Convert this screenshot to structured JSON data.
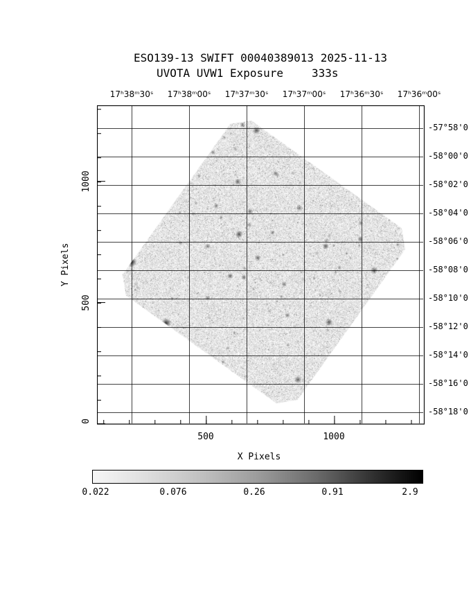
{
  "chart_data": {
    "type": "heatmap",
    "title": "ESO139-13 SWIFT 00040389013 2025-11-13",
    "subtitle_left": "UVOTA UVW1 Exposure",
    "subtitle_right": "333s",
    "target": "ESO139-13",
    "mission": "SWIFT",
    "obsid": "00040389013",
    "date": "2025-11-13",
    "instrument": "UVOTA",
    "filter": "UVW1",
    "map_type": "Exposure",
    "exposure_time_s": 333,
    "xlabel": "X Pixels",
    "ylabel": "Y Pixels",
    "xlim": [
      75,
      1350
    ],
    "ylim": [
      0,
      1315
    ],
    "x_ticks": [
      500,
      1000
    ],
    "y_ticks": [
      0,
      500,
      1000
    ],
    "x_tick_labels": [
      "500",
      "1000"
    ],
    "y_tick_labels": [
      "0",
      "500",
      "1000"
    ],
    "ra_tick_labels": [
      "17ʰ38ᵐ30ˢ",
      "17ʰ38ᵐ00ˢ",
      "17ʰ37ᵐ30ˢ",
      "17ʰ37ᵐ00ˢ",
      "17ʰ36ᵐ30ˢ",
      "17ʰ36ᵐ00ˢ"
    ],
    "dec_tick_labels": [
      "-57°58'0",
      "-58°00'0",
      "-58°02'0",
      "-58°04'0",
      "-58°06'0",
      "-58°08'0",
      "-58°10'0",
      "-58°12'0",
      "-58°14'0",
      "-58°16'0",
      "-58°18'0"
    ],
    "grid": true,
    "colorbar": {
      "orientation": "horizontal",
      "scale": "log",
      "labels": [
        "0.022",
        "0.076",
        "0.26",
        "0.91",
        "2.9"
      ],
      "values": [
        0.022,
        0.076,
        0.26,
        0.91,
        2.9
      ],
      "gradient_colors": [
        "#f6f6f6",
        "#e0e0e0",
        "#c2c2c2",
        "#9c9c9c",
        "#6a6a6a",
        "#303030",
        "#000000"
      ],
      "gradient_pos": [
        0,
        15,
        32,
        50,
        68,
        85,
        100
      ]
    },
    "footprint": {
      "shape": "rotated-square",
      "center_x": 726,
      "center_y": 669,
      "half_diagonal": 610,
      "corner_angle_deg": -9.4,
      "corner_cut_frac": 0.07
    },
    "sources": [
      {
        "x": 210,
        "y": 669,
        "r": 3.5,
        "a": 0.85
      },
      {
        "x": 345,
        "y": 417,
        "r": 3.2,
        "a": 0.8
      },
      {
        "x": 629,
        "y": 783,
        "r": 2.5,
        "a": 0.7
      },
      {
        "x": 594,
        "y": 611,
        "r": 2.0,
        "a": 0.6
      },
      {
        "x": 648,
        "y": 606,
        "r": 1.8,
        "a": 0.55
      },
      {
        "x": 507,
        "y": 520,
        "r": 1.8,
        "a": 0.5
      },
      {
        "x": 702,
        "y": 686,
        "r": 2.0,
        "a": 0.6
      },
      {
        "x": 805,
        "y": 577,
        "r": 1.8,
        "a": 0.5
      },
      {
        "x": 672,
        "y": 877,
        "r": 2.0,
        "a": 0.55
      },
      {
        "x": 624,
        "y": 1000,
        "r": 2.2,
        "a": 0.6
      },
      {
        "x": 697,
        "y": 1211,
        "r": 2.5,
        "a": 0.65
      },
      {
        "x": 772,
        "y": 1034,
        "r": 1.8,
        "a": 0.5
      },
      {
        "x": 864,
        "y": 891,
        "r": 2.0,
        "a": 0.55
      },
      {
        "x": 967,
        "y": 734,
        "r": 2.2,
        "a": 0.6
      },
      {
        "x": 980,
        "y": 420,
        "r": 2.5,
        "a": 0.65
      },
      {
        "x": 1102,
        "y": 763,
        "r": 2.0,
        "a": 0.55
      },
      {
        "x": 1156,
        "y": 634,
        "r": 2.5,
        "a": 0.6
      },
      {
        "x": 859,
        "y": 183,
        "r": 2.5,
        "a": 0.6
      },
      {
        "x": 818,
        "y": 449,
        "r": 1.8,
        "a": 0.5
      },
      {
        "x": 507,
        "y": 734,
        "r": 1.8,
        "a": 0.5
      },
      {
        "x": 643,
        "y": 1234,
        "r": 1.8,
        "a": 0.5
      },
      {
        "x": 1130,
        "y": 920,
        "r": 1.8,
        "a": 0.5
      },
      {
        "x": 540,
        "y": 900,
        "r": 1.8,
        "a": 0.5
      },
      {
        "x": 760,
        "y": 790,
        "r": 1.6,
        "a": 0.45
      }
    ]
  }
}
